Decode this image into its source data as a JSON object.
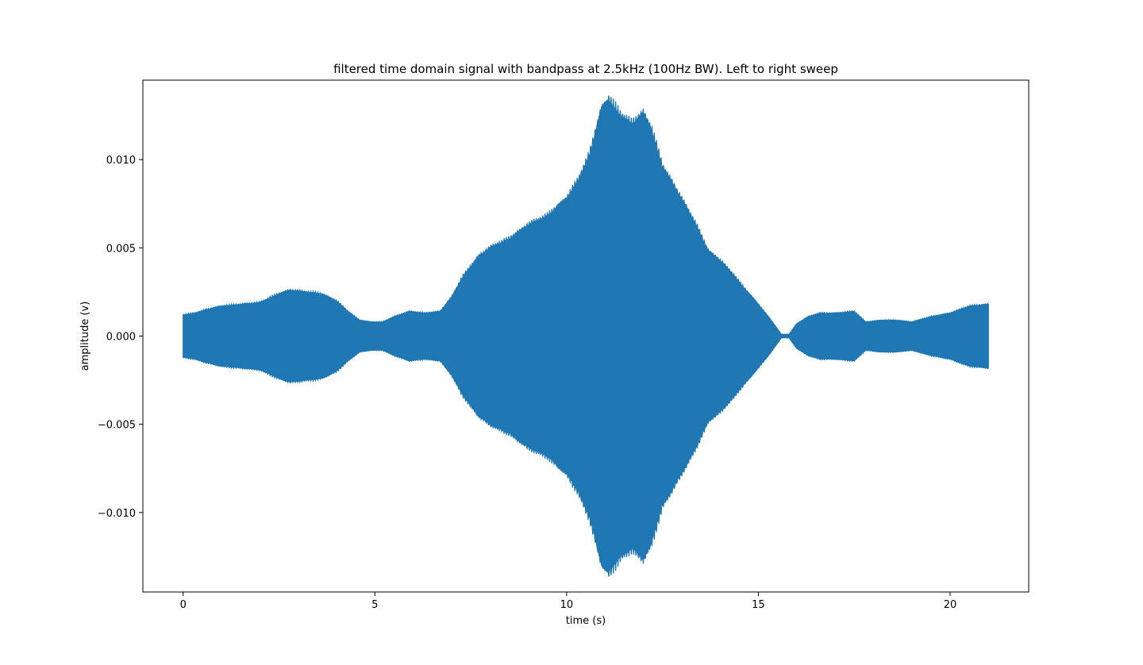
{
  "chart_data": {
    "type": "area",
    "title": "filtered time domain signal with bandpass at 2.5kHz (100Hz BW). Left to right sweep",
    "xlabel": "time (s)",
    "ylabel": "amplitude (v)",
    "xlim": [
      -1.05,
      22.05
    ],
    "ylim": [
      -0.0145,
      0.0145
    ],
    "x_ticks": [
      0,
      5,
      10,
      15,
      20
    ],
    "x_tick_labels": [
      "0",
      "5",
      "10",
      "15",
      "20"
    ],
    "y_ticks": [
      -0.01,
      -0.005,
      0.0,
      0.005,
      0.01
    ],
    "y_tick_labels": [
      "−0.010",
      "−0.005",
      "0.000",
      "0.005",
      "0.010"
    ],
    "grid": false,
    "series": [
      {
        "color": "#1f77b4",
        "envelope": {
          "x": [
            0.0,
            0.3,
            0.6,
            1.0,
            1.5,
            2.0,
            2.5,
            2.8,
            3.2,
            3.6,
            4.0,
            4.3,
            4.6,
            4.9,
            5.2,
            5.5,
            5.9,
            6.3,
            6.7,
            7.0,
            7.3,
            7.7,
            8.0,
            8.5,
            9.0,
            9.5,
            10.0,
            10.3,
            10.6,
            10.9,
            11.1,
            11.4,
            11.7,
            12.0,
            12.2,
            12.5,
            12.8,
            13.1,
            13.4,
            13.7,
            14.0,
            14.3,
            14.6,
            15.0,
            15.3,
            15.6,
            15.8,
            16.0,
            16.3,
            16.6,
            17.0,
            17.5,
            17.8,
            18.2,
            18.6,
            19.0,
            19.5,
            20.0,
            20.5,
            21.0
          ],
          "y": [
            0.0012,
            0.0013,
            0.0015,
            0.0017,
            0.0018,
            0.0019,
            0.0024,
            0.0026,
            0.0025,
            0.0024,
            0.002,
            0.0014,
            0.0009,
            0.0008,
            0.0008,
            0.0011,
            0.0014,
            0.0013,
            0.0014,
            0.0022,
            0.0034,
            0.0045,
            0.005,
            0.0055,
            0.0063,
            0.0068,
            0.0078,
            0.0088,
            0.0103,
            0.0128,
            0.0134,
            0.0125,
            0.012,
            0.0126,
            0.0118,
            0.0096,
            0.0085,
            0.0074,
            0.0062,
            0.0048,
            0.0043,
            0.0036,
            0.0028,
            0.0018,
            0.001,
            0.0001,
            0.0001,
            0.0007,
            0.0011,
            0.0013,
            0.0013,
            0.0014,
            0.0008,
            0.0009,
            0.0009,
            0.0008,
            0.0011,
            0.0013,
            0.0017,
            0.0018
          ]
        }
      }
    ]
  }
}
